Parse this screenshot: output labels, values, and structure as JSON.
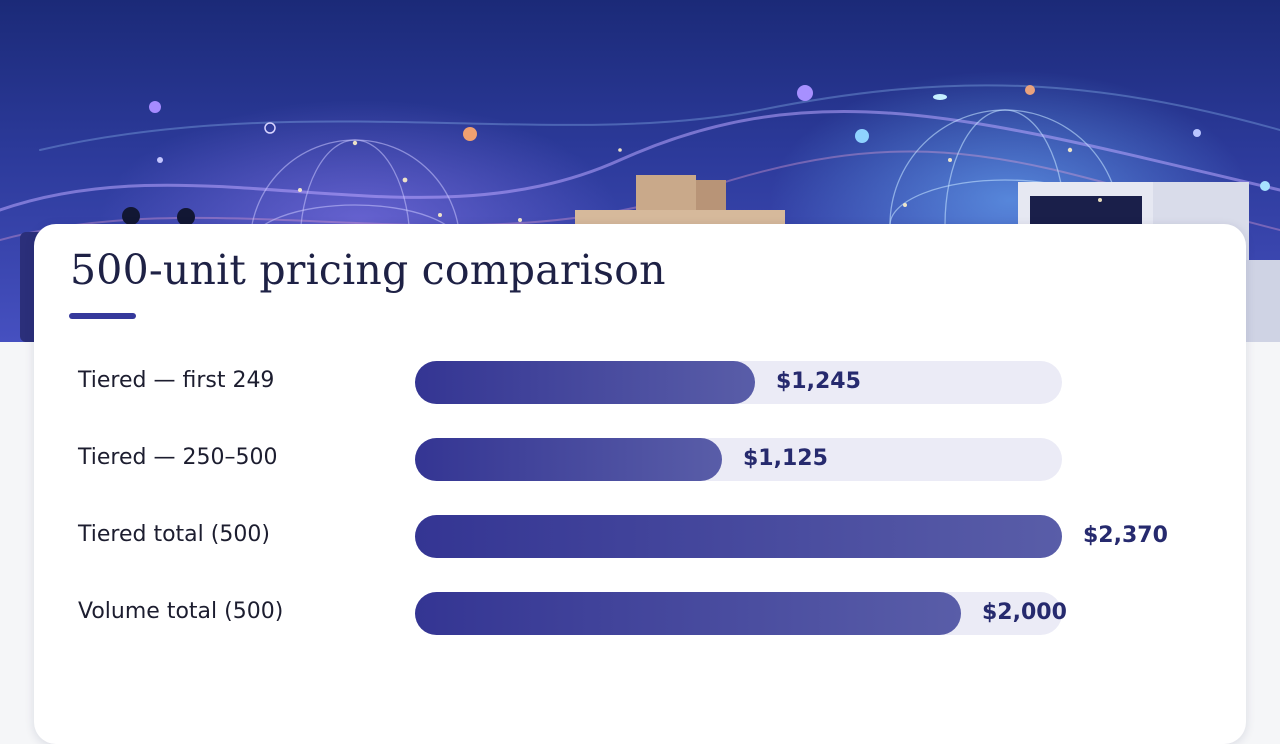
{
  "colors": {
    "banner_top": "#1b2a78",
    "banner_bottom": "#4650c0",
    "bar_start": "#343593",
    "bar_end": "#595da8",
    "track": "#ebebf6",
    "title_text": "#1e2145",
    "value_text": "#262a6e",
    "underline": "#35399b"
  },
  "chart_data": {
    "type": "bar",
    "orientation": "horizontal",
    "title": "500-unit pricing comparison",
    "categories": [
      "Tiered — first 249",
      "Tiered — 250–500",
      "Tiered total (500)",
      "Volume total (500)"
    ],
    "values": [
      1245,
      1125,
      2370,
      2000
    ],
    "value_labels": [
      "$1,245",
      "$1,125",
      "$2,370",
      "$2,000"
    ],
    "xlim": [
      0,
      2370
    ],
    "grid": false,
    "legend": "none"
  }
}
